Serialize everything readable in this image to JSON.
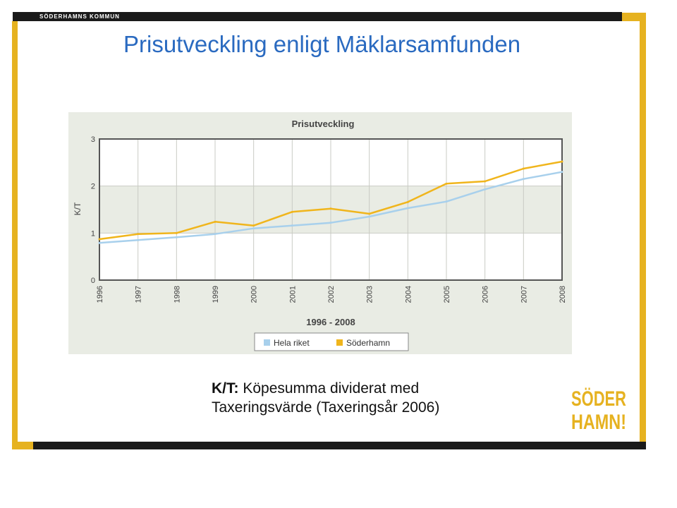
{
  "org": "SÖDERHAMNS KOMMUN",
  "slide_title": "Prisutveckling enligt Mäklarsamfunden",
  "caption": {
    "term": "K/T:",
    "line1": " Köpesumma dividerat med",
    "line2": "Taxeringsvärde  (Taxeringsår 2006)"
  },
  "logo": {
    "line1": "SÖDER",
    "line2": "HAMN!"
  },
  "colors": {
    "accent": "#e6b220",
    "title": "#2a6ac0",
    "riket": "#a8d0ec",
    "soderhamn": "#f0b51c"
  },
  "chart_data": {
    "type": "line",
    "title": "Prisutveckling",
    "xlabel": "1996 - 2008",
    "ylabel": "K/T",
    "x": [
      "1996",
      "1997",
      "1998",
      "1999",
      "2000",
      "2001",
      "2002",
      "2003",
      "2004",
      "2005",
      "2006",
      "2007",
      "2008"
    ],
    "ylim": [
      0,
      3
    ],
    "yticks": [
      "0",
      "1",
      "2",
      "3"
    ],
    "grid": true,
    "legend": "bottom",
    "series": [
      {
        "name": "Hela riket",
        "color": "#a8d0ec",
        "values": [
          0.79,
          0.85,
          0.91,
          0.98,
          1.1,
          1.16,
          1.22,
          1.35,
          1.53,
          1.67,
          1.93,
          2.15,
          2.3
        ]
      },
      {
        "name": "Söderhamn",
        "color": "#f0b51c",
        "values": [
          0.87,
          0.98,
          1.0,
          1.24,
          1.16,
          1.45,
          1.52,
          1.41,
          1.66,
          2.05,
          2.1,
          2.37,
          2.52
        ]
      }
    ]
  }
}
